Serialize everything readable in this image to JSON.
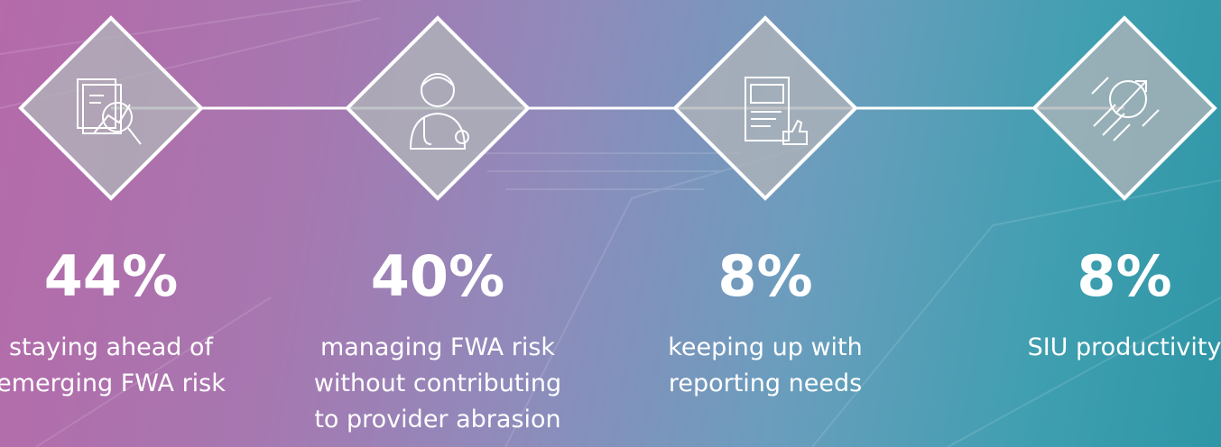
{
  "items": [
    {
      "stat": "44%",
      "label": [
        "staying ahead of",
        "emerging FWA risk"
      ]
    },
    {
      "stat": "40%",
      "label": [
        "managing FWA risk",
        "without contributing",
        "to provider abrasion"
      ]
    },
    {
      "stat": "8%",
      "label": [
        "keeping up with",
        "reporting needs"
      ]
    },
    {
      "stat": "8%",
      "label": [
        "SIU productivity"
      ]
    }
  ]
}
